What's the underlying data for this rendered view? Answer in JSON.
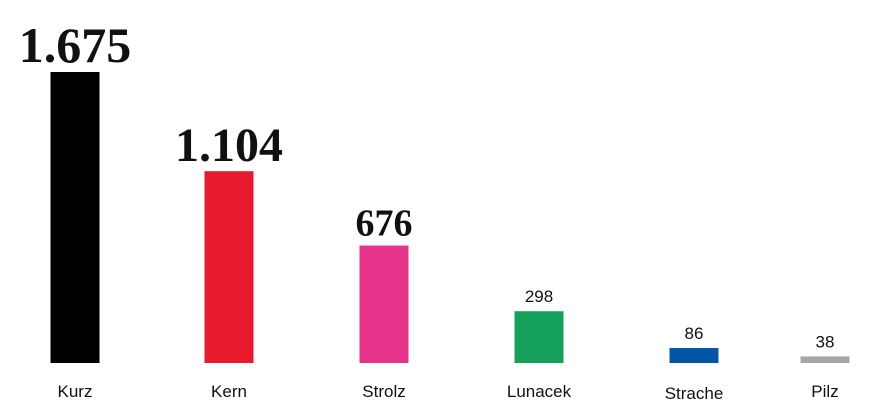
{
  "chart_data": {
    "type": "bar",
    "categories": [
      "Kurz",
      "Kern",
      "Strolz",
      "Lunacek",
      "Strache",
      "Pilz"
    ],
    "values": [
      1675,
      1104,
      676,
      298,
      86,
      38
    ],
    "value_labels": [
      "1.675",
      "1.104",
      "676",
      "298",
      "86",
      "38"
    ],
    "colors": [
      "#000000",
      "#e8192c",
      "#e8338b",
      "#14a05a",
      "#0055a4",
      "#a3a8a5"
    ]
  }
}
